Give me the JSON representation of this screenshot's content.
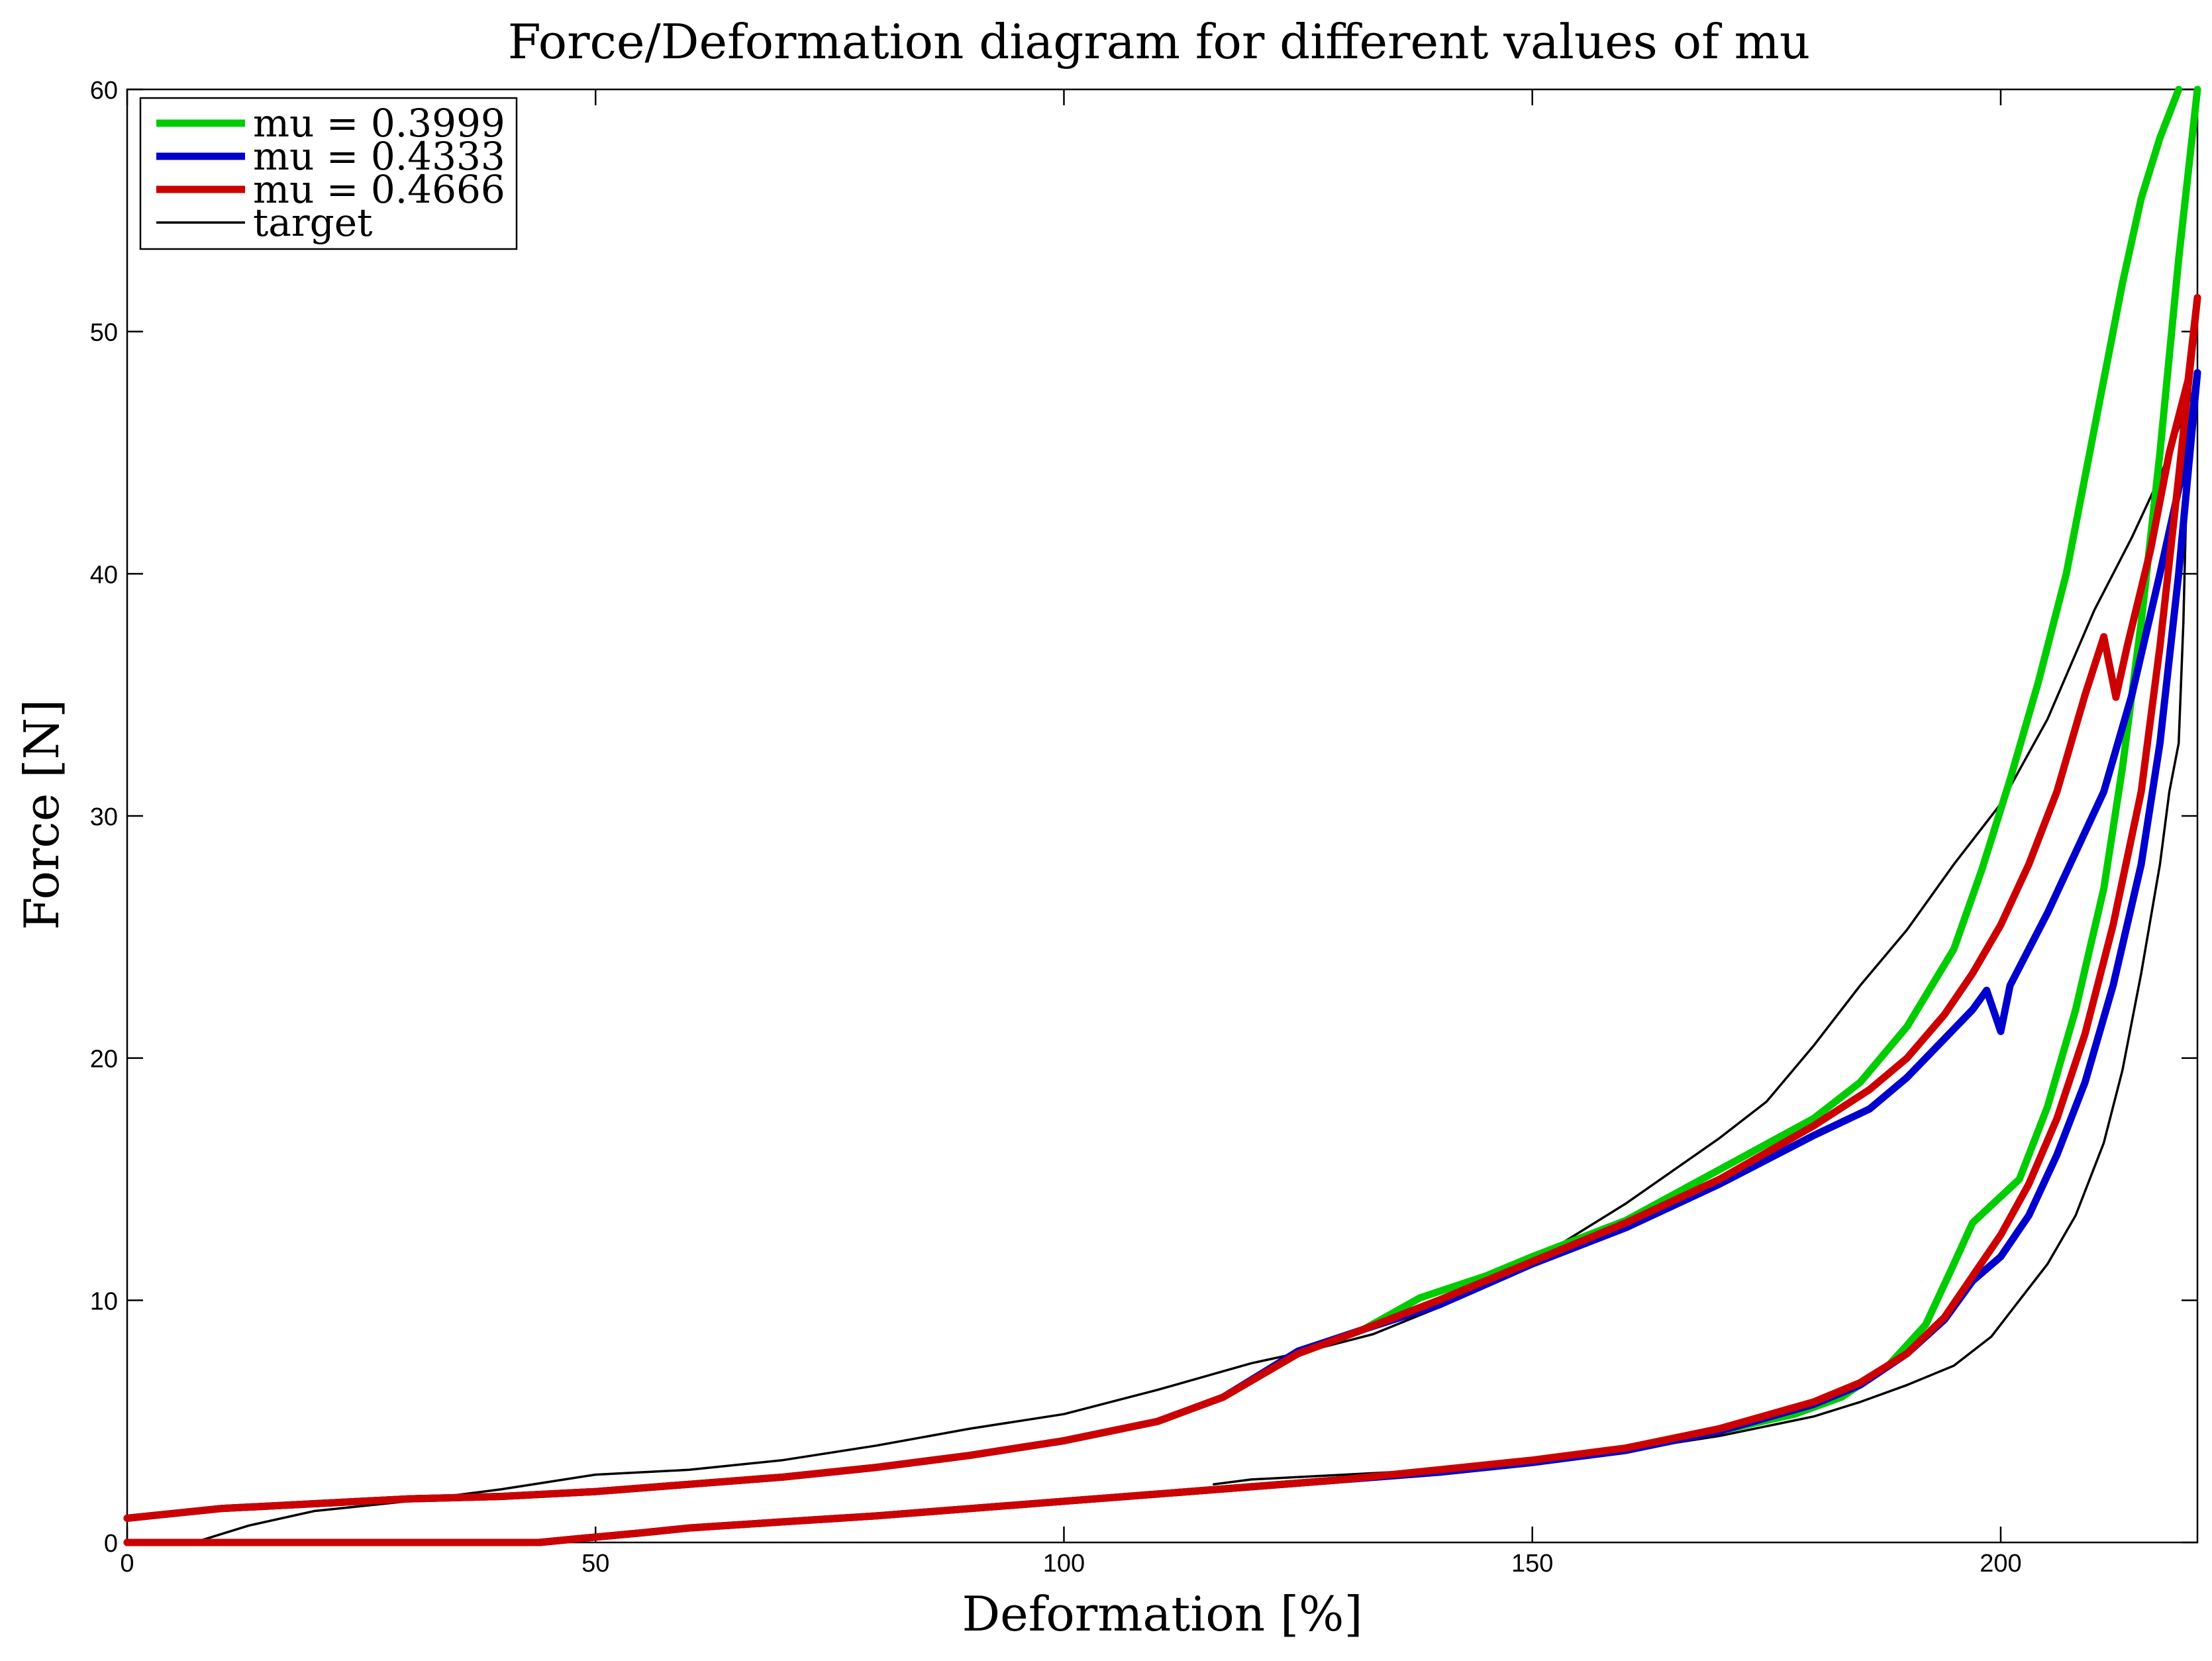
{
  "chart_data": {
    "type": "line",
    "title": "Force/Deformation diagram for different values of mu",
    "xlabel": "Deformation [%]",
    "ylabel": "Force [N]",
    "xlim": [
      0,
      221
    ],
    "ylim": [
      0,
      60
    ],
    "xticks": [
      0,
      50,
      100,
      150,
      200
    ],
    "yticks": [
      0,
      10,
      20,
      30,
      40,
      50,
      60
    ],
    "grid": false,
    "legend_position": "top-left",
    "series": [
      {
        "name": "mu = 0.3999",
        "color": "#00cc00",
        "width": 11,
        "loading": [
          [
            0,
            1.0
          ],
          [
            10,
            1.4
          ],
          [
            20,
            1.6
          ],
          [
            30,
            1.8
          ],
          [
            40,
            1.9
          ],
          [
            50,
            2.1
          ],
          [
            60,
            2.4
          ],
          [
            70,
            2.7
          ],
          [
            80,
            3.1
          ],
          [
            90,
            3.6
          ],
          [
            100,
            4.2
          ],
          [
            110,
            5.0
          ],
          [
            117,
            6.0
          ],
          [
            125,
            7.8
          ],
          [
            132,
            8.8
          ],
          [
            138,
            10.1
          ],
          [
            145,
            11.0
          ],
          [
            150,
            11.8
          ],
          [
            160,
            13.3
          ],
          [
            170,
            15.4
          ],
          [
            180,
            17.5
          ],
          [
            185,
            19.0
          ],
          [
            190,
            21.3
          ],
          [
            195,
            24.5
          ],
          [
            198,
            27.8
          ],
          [
            201,
            31.5
          ],
          [
            204,
            35.5
          ],
          [
            207,
            40.0
          ],
          [
            210,
            46.0
          ],
          [
            213,
            52.0
          ],
          [
            215,
            55.5
          ],
          [
            217,
            58.0
          ],
          [
            219,
            60.0
          ]
        ],
        "unloading": [
          [
            221,
            60.0
          ],
          [
            219,
            53.0
          ],
          [
            217,
            45.0
          ],
          [
            215,
            38.0
          ],
          [
            213,
            32.0
          ],
          [
            211,
            27.0
          ],
          [
            208,
            22.0
          ],
          [
            205,
            18.0
          ],
          [
            202,
            15.0
          ],
          [
            197,
            13.2
          ],
          [
            195,
            11.5
          ],
          [
            192,
            9.0
          ],
          [
            188,
            7.3
          ],
          [
            183,
            6.0
          ],
          [
            178,
            5.3
          ],
          [
            170,
            4.6
          ],
          [
            160,
            3.9
          ],
          [
            150,
            3.3
          ],
          [
            140,
            2.9
          ],
          [
            130,
            2.6
          ],
          [
            120,
            2.3
          ],
          [
            110,
            2.0
          ],
          [
            100,
            1.7
          ],
          [
            90,
            1.4
          ],
          [
            80,
            1.1
          ],
          [
            70,
            0.85
          ],
          [
            60,
            0.6
          ],
          [
            55,
            0.4
          ],
          [
            48,
            0.15
          ],
          [
            44,
            0.0
          ],
          [
            0,
            0.0
          ]
        ]
      },
      {
        "name": "mu = 0.4333",
        "color": "#0000cc",
        "width": 11,
        "loading": [
          [
            0,
            1.0
          ],
          [
            10,
            1.4
          ],
          [
            20,
            1.6
          ],
          [
            30,
            1.8
          ],
          [
            40,
            1.9
          ],
          [
            50,
            2.1
          ],
          [
            60,
            2.4
          ],
          [
            70,
            2.7
          ],
          [
            80,
            3.1
          ],
          [
            90,
            3.6
          ],
          [
            100,
            4.2
          ],
          [
            110,
            5.0
          ],
          [
            117,
            6.0
          ],
          [
            125,
            7.9
          ],
          [
            132,
            8.8
          ],
          [
            140,
            9.8
          ],
          [
            150,
            11.5
          ],
          [
            160,
            13.0
          ],
          [
            170,
            14.8
          ],
          [
            180,
            16.8
          ],
          [
            186,
            17.9
          ],
          [
            190,
            19.2
          ],
          [
            194,
            20.8
          ],
          [
            197,
            22.0
          ],
          [
            198.5,
            22.8
          ],
          [
            200,
            21.1
          ],
          [
            201,
            23.0
          ],
          [
            203,
            24.5
          ],
          [
            205,
            26.0
          ],
          [
            208,
            28.5
          ],
          [
            211,
            31.0
          ],
          [
            214,
            35.0
          ],
          [
            217,
            40.0
          ],
          [
            219,
            43.5
          ],
          [
            220,
            45.0
          ],
          [
            221,
            48.3
          ]
        ],
        "unloading": [
          [
            221,
            48.3
          ],
          [
            219,
            40.0
          ],
          [
            217,
            33.0
          ],
          [
            215,
            28.0
          ],
          [
            212,
            23.0
          ],
          [
            209,
            19.0
          ],
          [
            206,
            16.0
          ],
          [
            203,
            13.5
          ],
          [
            200,
            11.8
          ],
          [
            197,
            10.8
          ],
          [
            194,
            9.2
          ],
          [
            190,
            7.8
          ],
          [
            185,
            6.5
          ],
          [
            180,
            5.7
          ],
          [
            170,
            4.6
          ],
          [
            160,
            3.8
          ],
          [
            150,
            3.3
          ],
          [
            140,
            2.9
          ],
          [
            130,
            2.6
          ],
          [
            120,
            2.3
          ],
          [
            110,
            2.0
          ],
          [
            100,
            1.7
          ],
          [
            90,
            1.4
          ],
          [
            80,
            1.1
          ],
          [
            70,
            0.85
          ],
          [
            60,
            0.6
          ],
          [
            55,
            0.4
          ],
          [
            48,
            0.15
          ],
          [
            44,
            0.0
          ],
          [
            34,
            0.0
          ],
          [
            0,
            0.0
          ]
        ]
      },
      {
        "name": "mu = 0.4666",
        "color": "#cc0000",
        "width": 11,
        "loading": [
          [
            0,
            1.0
          ],
          [
            10,
            1.4
          ],
          [
            20,
            1.6
          ],
          [
            30,
            1.8
          ],
          [
            40,
            1.9
          ],
          [
            50,
            2.1
          ],
          [
            60,
            2.4
          ],
          [
            70,
            2.7
          ],
          [
            80,
            3.1
          ],
          [
            90,
            3.6
          ],
          [
            100,
            4.2
          ],
          [
            110,
            5.0
          ],
          [
            117,
            6.0
          ],
          [
            125,
            7.8
          ],
          [
            132,
            8.8
          ],
          [
            140,
            10.0
          ],
          [
            150,
            11.6
          ],
          [
            160,
            13.2
          ],
          [
            170,
            15.0
          ],
          [
            180,
            17.2
          ],
          [
            186,
            18.7
          ],
          [
            190,
            20.0
          ],
          [
            194,
            21.8
          ],
          [
            197,
            23.5
          ],
          [
            200,
            25.5
          ],
          [
            203,
            28.0
          ],
          [
            206,
            31.0
          ],
          [
            209,
            35.0
          ],
          [
            211,
            37.4
          ],
          [
            212.3,
            34.9
          ],
          [
            213.5,
            37.0
          ],
          [
            216,
            41.0
          ],
          [
            218,
            45.0
          ],
          [
            220,
            48.0
          ],
          [
            221,
            51.4
          ]
        ],
        "unloading": [
          [
            221,
            51.4
          ],
          [
            219,
            44.0
          ],
          [
            217,
            37.0
          ],
          [
            215,
            31.0
          ],
          [
            212,
            25.5
          ],
          [
            209,
            21.0
          ],
          [
            206,
            17.5
          ],
          [
            203,
            14.8
          ],
          [
            200,
            12.7
          ],
          [
            197,
            11.0
          ],
          [
            194,
            9.3
          ],
          [
            190,
            7.8
          ],
          [
            185,
            6.6
          ],
          [
            180,
            5.8
          ],
          [
            170,
            4.7
          ],
          [
            160,
            3.9
          ],
          [
            150,
            3.4
          ],
          [
            140,
            3.0
          ],
          [
            130,
            2.6
          ],
          [
            120,
            2.3
          ],
          [
            110,
            2.0
          ],
          [
            100,
            1.7
          ],
          [
            90,
            1.4
          ],
          [
            80,
            1.1
          ],
          [
            70,
            0.85
          ],
          [
            60,
            0.6
          ],
          [
            55,
            0.4
          ],
          [
            48,
            0.15
          ],
          [
            44,
            0.0
          ],
          [
            0,
            0.0
          ]
        ]
      },
      {
        "name": "target",
        "color": "#000000",
        "width": 3.5,
        "loading": [
          [
            7,
            0.0
          ],
          [
            8,
            0.1
          ],
          [
            13,
            0.7
          ],
          [
            20,
            1.3
          ],
          [
            30,
            1.7
          ],
          [
            40,
            2.2
          ],
          [
            50,
            2.8
          ],
          [
            60,
            3.0
          ],
          [
            70,
            3.4
          ],
          [
            80,
            4.0
          ],
          [
            90,
            4.7
          ],
          [
            100,
            5.3
          ],
          [
            110,
            6.3
          ],
          [
            120,
            7.4
          ],
          [
            126,
            7.9
          ],
          [
            133,
            8.6
          ],
          [
            140,
            9.7
          ],
          [
            150,
            11.6
          ],
          [
            160,
            14.0
          ],
          [
            170,
            16.7
          ],
          [
            175,
            18.2
          ],
          [
            180,
            20.5
          ],
          [
            185,
            23.0
          ],
          [
            190,
            25.3
          ],
          [
            195,
            28.0
          ],
          [
            200,
            30.5
          ],
          [
            205,
            34.0
          ],
          [
            210,
            38.5
          ],
          [
            214,
            41.5
          ],
          [
            217,
            44.0
          ],
          [
            219,
            46.0
          ],
          [
            221,
            48.0
          ]
        ],
        "unloading": [
          [
            220,
            46.0
          ],
          [
            219.5,
            38.0
          ],
          [
            219,
            33.0
          ],
          [
            218,
            31.0
          ],
          [
            217,
            28.0
          ],
          [
            215,
            23.5
          ],
          [
            213,
            19.5
          ],
          [
            211,
            16.5
          ],
          [
            208,
            13.5
          ],
          [
            205,
            11.5
          ],
          [
            202,
            10.0
          ],
          [
            199,
            8.5
          ],
          [
            195,
            7.3
          ],
          [
            190,
            6.5
          ],
          [
            185,
            5.8
          ],
          [
            180,
            5.2
          ],
          [
            170,
            4.4
          ],
          [
            160,
            3.8
          ],
          [
            150,
            3.3
          ],
          [
            140,
            3.0
          ],
          [
            130,
            2.8
          ],
          [
            125,
            2.7
          ],
          [
            120,
            2.6
          ],
          [
            116,
            2.4
          ]
        ]
      }
    ]
  }
}
